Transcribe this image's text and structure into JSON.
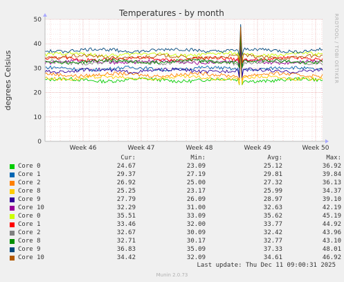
{
  "chart_data": {
    "type": "line",
    "title": "Temperatures - by month",
    "ylabel": "degrees Celsius",
    "ylim": [
      0,
      50
    ],
    "yticks": [
      0,
      10,
      20,
      30,
      40,
      50
    ],
    "xlabels": [
      "Week 46",
      "Week 47",
      "Week 48",
      "Week 49",
      "Week 50"
    ],
    "grid": true,
    "watermark": "RRDTOOL / TOBI OETIKER",
    "columns": [
      "Cur:",
      "Min:",
      "Avg:",
      "Max:"
    ],
    "series": [
      {
        "name": "Core 0",
        "color": "#00cc00",
        "cur": "24.67",
        "min": "23.09",
        "avg": "25.12",
        "max": "36.92"
      },
      {
        "name": "Core 1",
        "color": "#0066b3",
        "cur": "29.37",
        "min": "27.19",
        "avg": "29.81",
        "max": "39.84"
      },
      {
        "name": "Core 2",
        "color": "#ff8000",
        "cur": "26.92",
        "min": "25.00",
        "avg": "27.32",
        "max": "36.13"
      },
      {
        "name": "Core 8",
        "color": "#ffcc00",
        "cur": "25.25",
        "min": "23.17",
        "avg": "25.99",
        "max": "34.37"
      },
      {
        "name": "Core 9",
        "color": "#330099",
        "cur": "27.79",
        "min": "26.09",
        "avg": "28.97",
        "max": "39.10"
      },
      {
        "name": "Core 10",
        "color": "#990099",
        "cur": "32.29",
        "min": "31.00",
        "avg": "32.63",
        "max": "42.19"
      },
      {
        "name": "Core 0",
        "color": "#ccff00",
        "cur": "35.51",
        "min": "33.09",
        "avg": "35.62",
        "max": "45.19"
      },
      {
        "name": "Core 1",
        "color": "#ff0000",
        "cur": "33.46",
        "min": "32.00",
        "avg": "33.77",
        "max": "44.92"
      },
      {
        "name": "Core 2",
        "color": "#808080",
        "cur": "32.67",
        "min": "30.09",
        "avg": "32.42",
        "max": "43.96"
      },
      {
        "name": "Core 8",
        "color": "#008f00",
        "cur": "32.71",
        "min": "30.17",
        "avg": "32.77",
        "max": "43.10"
      },
      {
        "name": "Core 9",
        "color": "#00487d",
        "cur": "36.83",
        "min": "35.09",
        "avg": "37.33",
        "max": "48.01"
      },
      {
        "name": "Core 10",
        "color": "#b35a00",
        "cur": "34.42",
        "min": "32.09",
        "avg": "34.61",
        "max": "46.92"
      }
    ]
  },
  "footer": {
    "last_update": "Last update: Thu Dec 11 09:00:31 2025",
    "version": "Munin 2.0.73"
  }
}
